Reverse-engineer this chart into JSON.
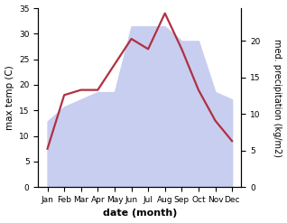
{
  "months": [
    "Jan",
    "Feb",
    "Mar",
    "Apr",
    "May",
    "Jun",
    "Jul",
    "Aug",
    "Sep",
    "Oct",
    "Nov",
    "Dec"
  ],
  "max_temp": [
    7.5,
    18.0,
    19.0,
    19.0,
    24.0,
    29.0,
    27.0,
    34.0,
    27.0,
    19.0,
    13.0,
    9.0
  ],
  "precipitation": [
    9.0,
    11.0,
    12.0,
    13.0,
    13.0,
    22.0,
    22.0,
    22.0,
    20.0,
    20.0,
    13.0,
    12.0
  ],
  "temp_color": "#b03040",
  "precip_fill_color": "#c8cef0",
  "temp_ylim": [
    0,
    35
  ],
  "precip_ylim": [
    0,
    24.5
  ],
  "temp_yticks": [
    0,
    5,
    10,
    15,
    20,
    25,
    30,
    35
  ],
  "precip_yticks": [
    0,
    5,
    10,
    15,
    20
  ],
  "xlabel": "date (month)",
  "ylabel_left": "max temp (C)",
  "ylabel_right": "med. precipitation (kg/m2)",
  "bg_color": "#ffffff",
  "line_width": 1.6
}
